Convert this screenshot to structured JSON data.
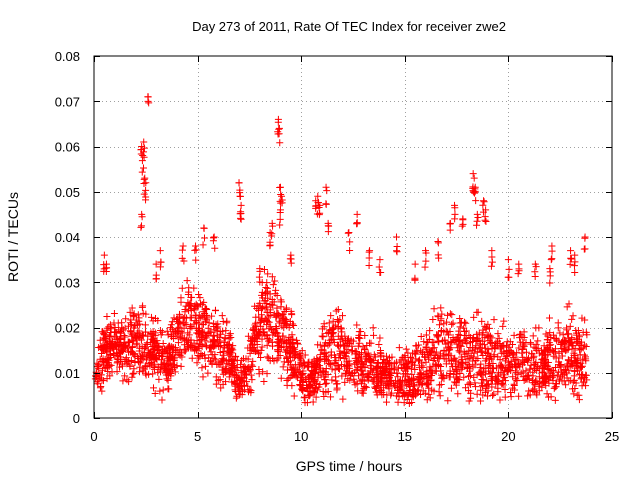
{
  "chart_data": {
    "type": "scatter",
    "title": "Day 273 of 2011, Rate Of TEC Index for receiver zwe2",
    "xlabel": "GPS time / hours",
    "ylabel": "ROTI / TECUs",
    "xlim": [
      0,
      25
    ],
    "ylim": [
      0,
      0.08
    ],
    "xticks": [
      "0",
      "5",
      "10",
      "15",
      "20",
      "25"
    ],
    "yticks": [
      "0",
      "0.01",
      "0.02",
      "0.03",
      "0.04",
      "0.05",
      "0.06",
      "0.07",
      "0.08"
    ],
    "grid": true,
    "marker": "+",
    "marker_color": "#ff0000",
    "profile_hours": [
      0,
      0.5,
      1,
      1.5,
      2,
      2.5,
      3,
      3.5,
      4,
      4.5,
      5,
      5.5,
      6,
      6.5,
      7,
      7.5,
      8,
      8.5,
      9,
      9.5,
      10,
      10.5,
      11,
      11.5,
      12,
      12.5,
      13,
      13.5,
      14,
      14.5,
      15,
      15.5,
      16,
      16.5,
      17,
      17.5,
      18,
      18.5,
      19,
      19.5,
      20,
      20.5,
      21,
      21.5,
      22,
      22.5,
      23,
      23.5,
      23.8
    ],
    "profile_median": [
      0.009,
      0.014,
      0.016,
      0.015,
      0.017,
      0.015,
      0.014,
      0.012,
      0.018,
      0.022,
      0.02,
      0.018,
      0.015,
      0.014,
      0.007,
      0.012,
      0.02,
      0.022,
      0.02,
      0.015,
      0.01,
      0.008,
      0.012,
      0.016,
      0.014,
      0.013,
      0.012,
      0.011,
      0.01,
      0.009,
      0.009,
      0.01,
      0.012,
      0.014,
      0.015,
      0.014,
      0.013,
      0.014,
      0.013,
      0.012,
      0.011,
      0.012,
      0.012,
      0.011,
      0.012,
      0.014,
      0.015,
      0.013,
      0.012
    ],
    "profile_spread": [
      0.003,
      0.008,
      0.009,
      0.009,
      0.01,
      0.01,
      0.009,
      0.008,
      0.01,
      0.011,
      0.011,
      0.01,
      0.009,
      0.008,
      0.005,
      0.008,
      0.011,
      0.012,
      0.012,
      0.01,
      0.007,
      0.006,
      0.01,
      0.012,
      0.01,
      0.009,
      0.009,
      0.008,
      0.007,
      0.007,
      0.008,
      0.009,
      0.011,
      0.013,
      0.013,
      0.012,
      0.012,
      0.012,
      0.011,
      0.01,
      0.009,
      0.009,
      0.009,
      0.009,
      0.01,
      0.011,
      0.011,
      0.01,
      0.009
    ],
    "peaks": [
      {
        "x": 0.5,
        "y": 0.036
      },
      {
        "x": 0.6,
        "y": 0.034
      },
      {
        "x": 2.3,
        "y": 0.06
      },
      {
        "x": 2.35,
        "y": 0.058
      },
      {
        "x": 2.4,
        "y": 0.061
      },
      {
        "x": 2.45,
        "y": 0.053
      },
      {
        "x": 2.5,
        "y": 0.052
      },
      {
        "x": 2.3,
        "y": 0.045
      },
      {
        "x": 2.6,
        "y": 0.071
      },
      {
        "x": 3.0,
        "y": 0.034
      },
      {
        "x": 3.2,
        "y": 0.037
      },
      {
        "x": 4.3,
        "y": 0.038
      },
      {
        "x": 4.9,
        "y": 0.038
      },
      {
        "x": 5.3,
        "y": 0.042
      },
      {
        "x": 5.8,
        "y": 0.04
      },
      {
        "x": 7.0,
        "y": 0.052
      },
      {
        "x": 7.05,
        "y": 0.049
      },
      {
        "x": 7.1,
        "y": 0.047
      },
      {
        "x": 8.0,
        "y": 0.033
      },
      {
        "x": 8.5,
        "y": 0.041
      },
      {
        "x": 8.6,
        "y": 0.043
      },
      {
        "x": 8.9,
        "y": 0.066
      },
      {
        "x": 8.95,
        "y": 0.064
      },
      {
        "x": 9.0,
        "y": 0.051
      },
      {
        "x": 9.05,
        "y": 0.049
      },
      {
        "x": 9.0,
        "y": 0.046
      },
      {
        "x": 9.5,
        "y": 0.036
      },
      {
        "x": 10.7,
        "y": 0.048
      },
      {
        "x": 10.8,
        "y": 0.049
      },
      {
        "x": 10.9,
        "y": 0.047
      },
      {
        "x": 11.2,
        "y": 0.051
      },
      {
        "x": 11.3,
        "y": 0.043
      },
      {
        "x": 12.3,
        "y": 0.041
      },
      {
        "x": 12.7,
        "y": 0.045
      },
      {
        "x": 13.3,
        "y": 0.037
      },
      {
        "x": 13.8,
        "y": 0.035
      },
      {
        "x": 14.6,
        "y": 0.04
      },
      {
        "x": 15.5,
        "y": 0.034
      },
      {
        "x": 16.0,
        "y": 0.037
      },
      {
        "x": 16.6,
        "y": 0.039
      },
      {
        "x": 17.2,
        "y": 0.043
      },
      {
        "x": 17.4,
        "y": 0.047
      },
      {
        "x": 17.8,
        "y": 0.044
      },
      {
        "x": 18.3,
        "y": 0.054
      },
      {
        "x": 18.35,
        "y": 0.053
      },
      {
        "x": 18.4,
        "y": 0.051
      },
      {
        "x": 18.5,
        "y": 0.045
      },
      {
        "x": 18.8,
        "y": 0.048
      },
      {
        "x": 18.9,
        "y": 0.046
      },
      {
        "x": 19.2,
        "y": 0.037
      },
      {
        "x": 20.0,
        "y": 0.035
      },
      {
        "x": 20.5,
        "y": 0.034
      },
      {
        "x": 21.3,
        "y": 0.034
      },
      {
        "x": 22.0,
        "y": 0.033
      },
      {
        "x": 22.1,
        "y": 0.038
      },
      {
        "x": 23.0,
        "y": 0.037
      },
      {
        "x": 23.2,
        "y": 0.036
      },
      {
        "x": 23.7,
        "y": 0.04
      }
    ]
  }
}
